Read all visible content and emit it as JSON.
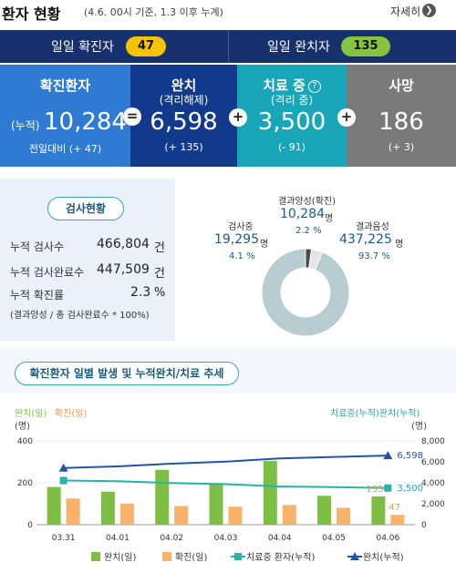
{
  "header": {
    "title": "환자 현황",
    "subtitle": "(4.6. 00시 기준, 1.3 이후 누계)",
    "more_label": "자세히",
    "more_icon": "chevron-right-icon"
  },
  "daily": {
    "confirmed_label": "일일 확진자",
    "confirmed_value": "47",
    "confirmed_color": "#f5c400",
    "released_label": "일일 완치자",
    "released_value": "135",
    "released_color": "#86c440"
  },
  "cards": [
    {
      "title": "확진환자",
      "prefix": "(누적)",
      "value": "10,284",
      "delta": "전일대비 (+ 47)",
      "color": "#2f7bd4"
    },
    {
      "title": "완치",
      "subtitle": "(격리해제)",
      "value": "6,598",
      "delta": "(+ 135)",
      "color": "#123a8c"
    },
    {
      "title": "치료 중",
      "subtitle": "(격리 중)",
      "value": "3,500",
      "delta": "(- 91)",
      "color": "#1aa6b9",
      "icon": "question-icon"
    },
    {
      "title": "사망",
      "value": "186",
      "delta": "(+ 3)",
      "color": "#7a7a7a"
    }
  ],
  "tests": {
    "badge": "검사현황",
    "rows": [
      {
        "label": "누적 검사수",
        "value": "466,804",
        "unit": "건"
      },
      {
        "label": "누적 검사완료수",
        "value": "447,509",
        "unit": "건"
      },
      {
        "label": "누적 확진률",
        "value": "2.3",
        "unit": "%"
      }
    ],
    "note": "(결과양성 / 총 검사완료수 * 100%)"
  },
  "pie": {
    "segments": [
      {
        "label": "결과양성(확진)",
        "value": "10,284",
        "unit": "명",
        "pct": "2.2 %",
        "share": 2.2,
        "color": "#4a4a4a"
      },
      {
        "label": "검사중",
        "value": "19,295",
        "unit": "명",
        "pct": "4.1 %",
        "share": 4.1,
        "color": "#e4e4e4"
      },
      {
        "label": "결과음성",
        "value": "437,225",
        "unit": "명",
        "pct": "93.7 %",
        "share": 93.7,
        "color": "#b8cdd2"
      }
    ]
  },
  "trend": {
    "title": "확진환자 일별 발생 및 누적완치/치료 추세",
    "left_axis_label_a": "완치(일)",
    "left_axis_label_b": "확진(일)",
    "left_unit": "(명)",
    "right_axis_label": "치료중(누적)완치(누적)",
    "right_unit": "(명)"
  },
  "chart_data": {
    "type": "bar",
    "categories": [
      "03.31",
      "04.01",
      "04.02",
      "04.03",
      "04.04",
      "04.05",
      "04.06"
    ],
    "ylim_left": [
      0,
      400
    ],
    "yticks_left": [
      0,
      200,
      400
    ],
    "ylim_right": [
      0,
      8000
    ],
    "yticks_right": [
      "0",
      "2,000",
      "4,000",
      "6,000",
      "8,000"
    ],
    "series": [
      {
        "name": "완치(일)",
        "type": "bar",
        "axis": "left",
        "color": "#7cbf44",
        "values": [
          180,
          158,
          262,
          192,
          304,
          138,
          135
        ]
      },
      {
        "name": "확진(일)",
        "type": "bar",
        "axis": "left",
        "color": "#f8b26a",
        "values": [
          125,
          101,
          89,
          86,
          94,
          81,
          47
        ]
      },
      {
        "name": "치료중 환자(누적)",
        "type": "line",
        "axis": "right",
        "color": "#27b3a8",
        "values": [
          4216,
          4155,
          3979,
          3867,
          3654,
          3591,
          3500
        ]
      },
      {
        "name": "완치(누적)",
        "type": "line",
        "axis": "right",
        "color": "#2553a8",
        "values": [
          5408,
          5567,
          5828,
          6021,
          6325,
          6463,
          6598
        ]
      }
    ],
    "annotations": {
      "released_cum": "6,598",
      "treating_cum": "3,500",
      "released_day": "135",
      "confirmed_day": "47"
    }
  }
}
